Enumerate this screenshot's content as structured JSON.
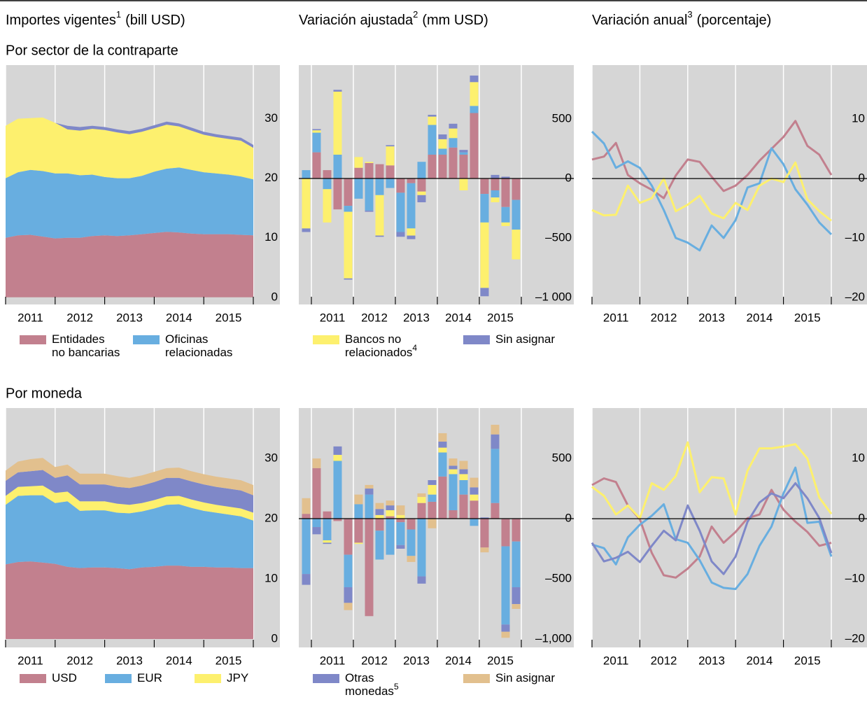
{
  "columns": [
    {
      "text": "Importes vigentes",
      "sup": "1",
      "unit": "(bill USD)"
    },
    {
      "text": "Variación ajustada",
      "sup": "2",
      "unit": "(mm USD)"
    },
    {
      "text": "Variación anual",
      "sup": "3",
      "unit": "(porcentaje)"
    }
  ],
  "rows": [
    {
      "label": "Por sector de la contraparte",
      "legend": [
        {
          "name": [
            "Entidades",
            "no bancarias"
          ],
          "color": "#c2808e"
        },
        {
          "name": [
            "Oficinas",
            "relacionadas"
          ],
          "color": "#68aee0"
        },
        {
          "name": [
            "Bancos no",
            "relacionados"
          ],
          "sup": "4",
          "color": "#fdf06e"
        },
        {
          "name": [
            "Sin asignar"
          ],
          "color": "#7f88c8"
        }
      ]
    },
    {
      "label": "Por moneda",
      "legend": [
        {
          "name": [
            "USD"
          ],
          "color": "#c2808e"
        },
        {
          "name": [
            "EUR"
          ],
          "color": "#68aee0"
        },
        {
          "name": [
            "JPY"
          ],
          "color": "#fdf06e"
        },
        {
          "name": [
            "Otras",
            "monedas"
          ],
          "sup": "5",
          "color": "#7f88c8"
        },
        {
          "name": [
            "Sin asignar"
          ],
          "color": "#e2c08e"
        }
      ]
    }
  ],
  "chart_data": [
    {
      "type": "area",
      "x": [
        2011,
        2011.25,
        2011.5,
        2011.75,
        2012,
        2012.25,
        2012.5,
        2012.75,
        2013,
        2013.25,
        2013.5,
        2013.75,
        2014,
        2014.25,
        2014.5,
        2014.75,
        2015,
        2015.25,
        2015.5,
        2015.75,
        2016
      ],
      "xlim": [
        2011,
        2016
      ],
      "xgrid": [
        2011,
        2012,
        2013,
        2014,
        2015,
        2016
      ],
      "xticks": [
        {
          "value": 2011.5,
          "label": "2011"
        },
        {
          "value": 2012.5,
          "label": "2012"
        },
        {
          "value": 2013.5,
          "label": "2013"
        },
        {
          "value": 2014.5,
          "label": "2014"
        },
        {
          "value": 2015.5,
          "label": "2015"
        }
      ],
      "ylim": [
        -1.2,
        39
      ],
      "yticks": [
        0,
        10,
        20,
        30
      ],
      "series": [
        {
          "values": [
            10.0,
            10.4,
            10.5,
            10.2,
            9.9,
            10.0,
            10.0,
            10.3,
            10.4,
            10.3,
            10.4,
            10.6,
            10.8,
            11.0,
            10.9,
            10.7,
            10.6,
            10.6,
            10.6,
            10.5,
            10.4
          ]
        },
        {
          "values": [
            10.0,
            10.6,
            10.9,
            11.0,
            10.9,
            10.8,
            10.5,
            10.3,
            9.8,
            9.7,
            9.6,
            9.8,
            10.3,
            10.6,
            10.9,
            10.7,
            10.4,
            10.2,
            10.0,
            9.8,
            9.4
          ]
        },
        {
          "values": [
            8.8,
            9.0,
            8.7,
            9.0,
            8.5,
            7.4,
            7.5,
            7.7,
            7.9,
            7.7,
            7.4,
            7.4,
            7.3,
            7.4,
            6.9,
            6.6,
            6.3,
            6.1,
            6.0,
            6.0,
            5.3
          ]
        },
        {
          "values": [
            0,
            0,
            0,
            0,
            0,
            0.6,
            0.6,
            0.5,
            0.5,
            0.5,
            0.5,
            0.5,
            0.5,
            0.5,
            0.5,
            0.5,
            0.5,
            0.5,
            0.5,
            0.5,
            0.5
          ]
        }
      ]
    },
    {
      "type": "bar",
      "x": [
        2010.875,
        2011.125,
        2011.375,
        2011.625,
        2011.875,
        2012.125,
        2012.375,
        2012.625,
        2012.875,
        2013.125,
        2013.375,
        2013.625,
        2013.875,
        2014.125,
        2014.375,
        2014.625,
        2014.875,
        2015.125,
        2015.375,
        2015.625,
        2015.875
      ],
      "xlim": [
        2010.7,
        2016
      ],
      "xgrid": [
        2011,
        2012,
        2013,
        2014,
        2015,
        2016
      ],
      "xticks": [
        {
          "value": 2011.5,
          "label": "2011"
        },
        {
          "value": 2012.5,
          "label": "2012"
        },
        {
          "value": 2013.5,
          "label": "2013"
        },
        {
          "value": 2014.5,
          "label": "2014"
        },
        {
          "value": 2015.5,
          "label": "2015"
        }
      ],
      "ylim": [
        -1059,
        953
      ],
      "yticks": [
        {
          "value": -1000,
          "label": "–1 000"
        },
        {
          "value": -500,
          "label": "–500"
        },
        0,
        500
      ],
      "zero_line": true,
      "series": [
        {
          "values": [
            0,
            220,
            70,
            -260,
            -230,
            90,
            130,
            120,
            110,
            -120,
            -40,
            -110,
            200,
            200,
            260,
            200,
            550,
            -130,
            -100,
            -240,
            -180
          ]
        },
        {
          "values": [
            70,
            165,
            -90,
            200,
            -50,
            -170,
            -270,
            -140,
            -80,
            -330,
            -380,
            140,
            250,
            50,
            80,
            20,
            60,
            -240,
            -60,
            -130,
            -250
          ]
        },
        {
          "values": [
            -420,
            20,
            -280,
            530,
            -560,
            90,
            10,
            -340,
            160,
            0,
            -60,
            -30,
            70,
            80,
            80,
            -100,
            200,
            -550,
            -40,
            -30,
            -250
          ]
        },
        {
          "values": [
            -30,
            10,
            0,
            15,
            -10,
            0,
            -10,
            -10,
            10,
            -40,
            -30,
            -60,
            15,
            40,
            40,
            20,
            55,
            -70,
            30,
            15,
            0
          ]
        }
      ]
    },
    {
      "type": "line",
      "x": [
        2011,
        2011.25,
        2011.5,
        2011.75,
        2012,
        2012.25,
        2012.5,
        2012.75,
        2013,
        2013.25,
        2013.5,
        2013.75,
        2014,
        2014.25,
        2014.5,
        2014.75,
        2015,
        2015.25,
        2015.5,
        2015.75,
        2016
      ],
      "xlim": [
        2011,
        2016
      ],
      "xgrid": [
        2011,
        2012,
        2013,
        2014,
        2015,
        2016
      ],
      "xticks": [
        {
          "value": 2011.5,
          "label": "2011"
        },
        {
          "value": 2012.5,
          "label": "2012"
        },
        {
          "value": 2013.5,
          "label": "2013"
        },
        {
          "value": 2014.5,
          "label": "2014"
        },
        {
          "value": 2015.5,
          "label": "2015"
        }
      ],
      "ylim": [
        -21.2,
        19.1
      ],
      "yticks": [
        {
          "value": -20,
          "label": "–20"
        },
        {
          "value": -10,
          "label": "–10"
        },
        0,
        10
      ],
      "zero_line": true,
      "series": [
        {
          "values": [
            3.2,
            3.7,
            6.0,
            0.6,
            -0.8,
            -1.9,
            -3.3,
            0.5,
            3.2,
            2.8,
            0.3,
            -2.1,
            -1.2,
            0.6,
            3.0,
            5.0,
            7.0,
            9.7,
            5.5,
            4.0,
            0.6
          ]
        },
        {
          "values": [
            7.9,
            5.9,
            1.8,
            2.9,
            1.8,
            -1.2,
            -5.3,
            -10.0,
            -10.8,
            -12.1,
            -7.9,
            -10.0,
            -7.0,
            -1.5,
            -0.8,
            5.1,
            2.4,
            -1.8,
            -4.4,
            -7.4,
            -9.4
          ]
        },
        {
          "values": [
            -5.3,
            -6.2,
            -6.1,
            -1.2,
            -4.1,
            -3.3,
            0,
            -5.5,
            -4.4,
            -2.9,
            -5.9,
            -6.7,
            -4.1,
            -5.3,
            -1.2,
            0,
            -0.6,
            2.7,
            -3.5,
            -5.5,
            -7.1
          ]
        }
      ]
    },
    {
      "type": "area",
      "x": [
        2011,
        2011.25,
        2011.5,
        2011.75,
        2012,
        2012.25,
        2012.5,
        2012.75,
        2013,
        2013.25,
        2013.5,
        2013.75,
        2014,
        2014.25,
        2014.5,
        2014.75,
        2015,
        2015.25,
        2015.5,
        2015.75,
        2016
      ],
      "xlim": [
        2011,
        2016
      ],
      "xgrid": [
        2011,
        2012,
        2013,
        2014,
        2015,
        2016
      ],
      "xticks": [
        {
          "value": 2011.5,
          "label": "2011"
        },
        {
          "value": 2012.5,
          "label": "2012"
        },
        {
          "value": 2013.5,
          "label": "2013"
        },
        {
          "value": 2014.5,
          "label": "2014"
        },
        {
          "value": 2015.5,
          "label": "2015"
        }
      ],
      "ylim": [
        -1.4,
        38.4
      ],
      "yticks": [
        0,
        10,
        20,
        30
      ],
      "series": [
        {
          "values": [
            12.4,
            12.8,
            12.9,
            12.7,
            12.5,
            12.0,
            11.8,
            11.9,
            11.9,
            11.8,
            11.6,
            11.9,
            12.0,
            12.2,
            12.2,
            12.0,
            12.0,
            11.9,
            11.9,
            11.8,
            11.8
          ]
        },
        {
          "values": [
            9.9,
            11.0,
            11.0,
            11.2,
            10.1,
            10.9,
            9.5,
            9.5,
            9.5,
            9.2,
            9.3,
            9.3,
            9.7,
            10.1,
            10.2,
            9.8,
            9.3,
            9.1,
            8.8,
            8.6,
            7.9
          ]
        },
        {
          "values": [
            1.5,
            1.5,
            1.5,
            1.6,
            1.7,
            1.6,
            1.6,
            1.5,
            1.5,
            1.5,
            1.4,
            1.4,
            1.4,
            1.4,
            1.4,
            1.4,
            1.4,
            1.3,
            1.3,
            1.3,
            1.3
          ]
        },
        {
          "values": [
            2.5,
            2.4,
            2.5,
            2.6,
            2.5,
            2.7,
            2.8,
            2.8,
            2.8,
            2.8,
            2.8,
            2.9,
            3.0,
            3.1,
            3.0,
            3.0,
            3.0,
            3.0,
            3.0,
            3.0,
            2.9
          ]
        },
        {
          "values": [
            1.7,
            1.8,
            2.0,
            2.0,
            1.8,
            1.8,
            1.8,
            1.8,
            1.8,
            1.8,
            1.7,
            1.7,
            1.7,
            1.6,
            1.7,
            1.7,
            1.7,
            1.7,
            1.7,
            1.7,
            1.7
          ]
        }
      ]
    },
    {
      "type": "bar",
      "x": [
        2010.875,
        2011.125,
        2011.375,
        2011.625,
        2011.875,
        2012.125,
        2012.375,
        2012.625,
        2012.875,
        2013.125,
        2013.375,
        2013.625,
        2013.875,
        2014.125,
        2014.375,
        2014.625,
        2014.875,
        2015.125,
        2015.375,
        2015.625,
        2015.875
      ],
      "xlim": [
        2010.7,
        2016
      ],
      "xgrid": [
        2011,
        2012,
        2013,
        2014,
        2015,
        2016
      ],
      "xticks": [
        {
          "value": 2011.5,
          "label": "2011"
        },
        {
          "value": 2012.5,
          "label": "2012"
        },
        {
          "value": 2013.5,
          "label": "2013"
        },
        {
          "value": 2014.5,
          "label": "2014"
        },
        {
          "value": 2015.5,
          "label": "2015"
        }
      ],
      "ylim": [
        -1070,
        919
      ],
      "yticks": [
        {
          "value": -1000,
          "label": "–1,000"
        },
        {
          "value": -500,
          "label": "–500"
        },
        0,
        500
      ],
      "zero_line": true,
      "series": [
        {
          "values": [
            40,
            420,
            60,
            -20,
            -300,
            -200,
            -810,
            -100,
            20,
            -30,
            -90,
            130,
            140,
            350,
            70,
            200,
            150,
            -240,
            130,
            -230,
            -190
          ]
        },
        {
          "values": [
            -460,
            -70,
            -180,
            480,
            -270,
            120,
            200,
            -240,
            -300,
            -190,
            -220,
            -480,
            60,
            200,
            300,
            120,
            -60,
            0,
            450,
            -650,
            -380
          ]
        },
        {
          "values": [
            0,
            0,
            -20,
            50,
            0,
            -10,
            0,
            30,
            50,
            30,
            0,
            50,
            80,
            40,
            40,
            50,
            50,
            0,
            0,
            0,
            0
          ]
        },
        {
          "values": [
            -90,
            -60,
            -10,
            70,
            -130,
            0,
            50,
            50,
            40,
            -30,
            0,
            -60,
            40,
            50,
            30,
            40,
            60,
            10,
            120,
            -60,
            -140
          ]
        },
        {
          "values": [
            130,
            80,
            0,
            0,
            -60,
            80,
            30,
            50,
            40,
            80,
            -50,
            30,
            -80,
            70,
            60,
            70,
            80,
            -40,
            80,
            -50,
            -40
          ]
        }
      ]
    },
    {
      "type": "line",
      "x": [
        2011,
        2011.25,
        2011.5,
        2011.75,
        2012,
        2012.25,
        2012.5,
        2012.75,
        2013,
        2013.25,
        2013.5,
        2013.75,
        2014,
        2014.25,
        2014.5,
        2014.75,
        2015,
        2015.25,
        2015.5,
        2015.75,
        2016
      ],
      "xlim": [
        2011,
        2016
      ],
      "xgrid": [
        2011,
        2012,
        2013,
        2014,
        2015,
        2016
      ],
      "xticks": [
        {
          "value": 2011.5,
          "label": "2011"
        },
        {
          "value": 2012.5,
          "label": "2012"
        },
        {
          "value": 2013.5,
          "label": "2013"
        },
        {
          "value": 2014.5,
          "label": "2014"
        },
        {
          "value": 2015.5,
          "label": "2015"
        }
      ],
      "ylim": [
        -21.4,
        18.4
      ],
      "yticks": [
        {
          "value": -20,
          "label": "–20"
        },
        {
          "value": -10,
          "label": "–10"
        },
        0,
        10
      ],
      "zero_line": true,
      "series": [
        {
          "values": [
            5.6,
            6.7,
            6.1,
            2.2,
            -0.1,
            -5.7,
            -9.4,
            -9.8,
            -8.3,
            -6.3,
            -1.3,
            -4.0,
            -2.2,
            0.1,
            0.7,
            4.8,
            1.5,
            -0.5,
            -2.2,
            -4.5,
            -4.0
          ]
        },
        {
          "values": [
            -4.3,
            -4.9,
            -7.6,
            -3.1,
            -1.0,
            0.5,
            2.4,
            -3.4,
            -4.0,
            -6.9,
            -10.6,
            -11.5,
            -11.7,
            -9.2,
            -4.5,
            -1.3,
            4.2,
            8.5,
            -0.7,
            -0.5,
            -6.3
          ]
        },
        {
          "values": [
            5.3,
            3.8,
            0.7,
            2.2,
            0.1,
            5.9,
            4.8,
            7.1,
            12.7,
            4.4,
            6.9,
            6.7,
            0.7,
            8.0,
            11.7,
            11.7,
            12.0,
            12.4,
            10.0,
            3.5,
            0.8
          ]
        },
        {
          "values": [
            -4.0,
            -7.1,
            -6.5,
            -5.5,
            -7.2,
            -4.5,
            -2.0,
            -3.6,
            2.2,
            -2.0,
            -7.1,
            -9.2,
            -6.3,
            -0.5,
            2.7,
            4.2,
            3.4,
            5.9,
            3.4,
            0.1,
            -5.7
          ]
        }
      ]
    }
  ]
}
